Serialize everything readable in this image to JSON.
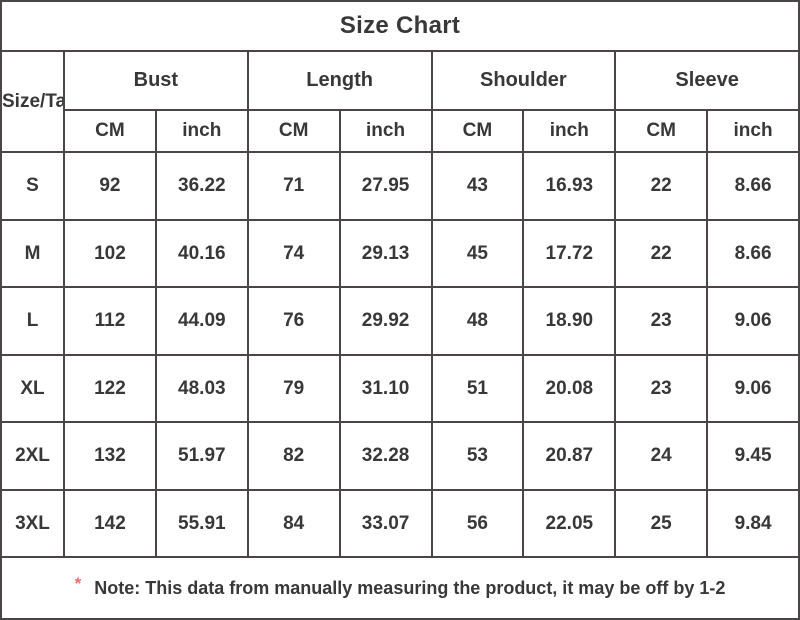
{
  "title": "Size Chart",
  "chart_data": {
    "type": "table",
    "title": "Size Chart",
    "corner_label": "Size/Tag",
    "column_groups": [
      "Bust",
      "Length",
      "Shoulder",
      "Sleeve"
    ],
    "units_per_group": [
      "CM",
      "inch"
    ],
    "columns": [
      "Size/Tag",
      "Bust CM",
      "Bust inch",
      "Length CM",
      "Length inch",
      "Shoulder CM",
      "Shoulder inch",
      "Sleeve CM",
      "Sleeve inch"
    ],
    "rows": [
      {
        "size": "S",
        "values": [
          "92",
          "36.22",
          "71",
          "27.95",
          "43",
          "16.93",
          "22",
          "8.66"
        ]
      },
      {
        "size": "M",
        "values": [
          "102",
          "40.16",
          "74",
          "29.13",
          "45",
          "17.72",
          "22",
          "8.66"
        ]
      },
      {
        "size": "L",
        "values": [
          "112",
          "44.09",
          "76",
          "29.92",
          "48",
          "18.90",
          "23",
          "9.06"
        ]
      },
      {
        "size": "XL",
        "values": [
          "122",
          "48.03",
          "79",
          "31.10",
          "51",
          "20.08",
          "23",
          "9.06"
        ]
      },
      {
        "size": "2XL",
        "values": [
          "132",
          "51.97",
          "82",
          "32.28",
          "53",
          "20.87",
          "24",
          "9.45"
        ]
      },
      {
        "size": "3XL",
        "values": [
          "142",
          "55.91",
          "84",
          "33.07",
          "56",
          "22.05",
          "25",
          "9.84"
        ]
      }
    ]
  },
  "table": {
    "corner_label": "Size/Tag",
    "groups": [
      {
        "label": "Bust"
      },
      {
        "label": "Length"
      },
      {
        "label": "Shoulder"
      },
      {
        "label": "Sleeve"
      }
    ],
    "unit_cm": "CM",
    "unit_inch": "inch",
    "rows": [
      {
        "size": "S",
        "values": [
          "92",
          "36.22",
          "71",
          "27.95",
          "43",
          "16.93",
          "22",
          "8.66"
        ]
      },
      {
        "size": "M",
        "values": [
          "102",
          "40.16",
          "74",
          "29.13",
          "45",
          "17.72",
          "22",
          "8.66"
        ]
      },
      {
        "size": "L",
        "values": [
          "112",
          "44.09",
          "76",
          "29.92",
          "48",
          "18.90",
          "23",
          "9.06"
        ]
      },
      {
        "size": "XL",
        "values": [
          "122",
          "48.03",
          "79",
          "31.10",
          "51",
          "20.08",
          "23",
          "9.06"
        ]
      },
      {
        "size": "2XL",
        "values": [
          "132",
          "51.97",
          "82",
          "32.28",
          "53",
          "20.87",
          "24",
          "9.45"
        ]
      },
      {
        "size": "3XL",
        "values": [
          "142",
          "55.91",
          "84",
          "33.07",
          "56",
          "22.05",
          "25",
          "9.84"
        ]
      }
    ]
  },
  "note": {
    "asterisk": "*",
    "text": "Note: This data from manually measuring the product, it may be off by 1-2"
  },
  "colors": {
    "text": "#383838",
    "border": "#4b4547",
    "title_background": "#f7f7f7",
    "asterisk": "#e96b6b"
  }
}
